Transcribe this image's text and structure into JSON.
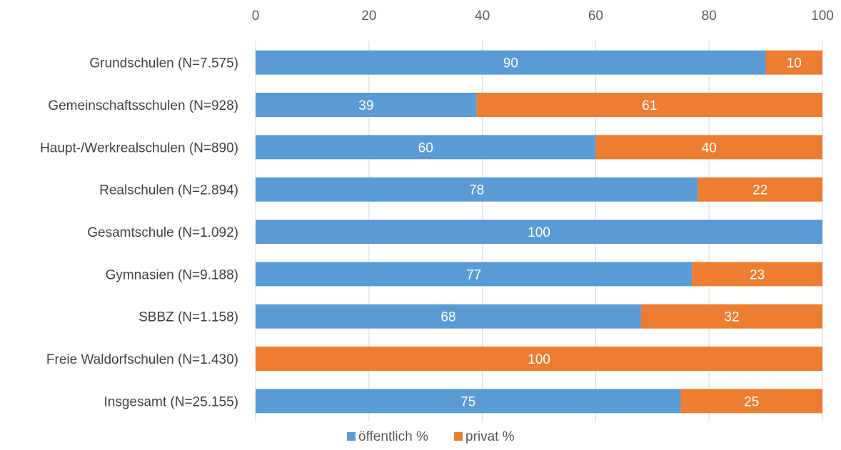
{
  "chart_data": {
    "type": "bar",
    "orientation": "horizontal",
    "stacked": true,
    "categories": [
      "Grundschulen (N=7.575)",
      "Gemeinschaftsschulen (N=928)",
      "Haupt-/Werkrealschulen (N=890)",
      "Realschulen (N=2.894)",
      "Gesamtschule (N=1.092)",
      "Gymnasien (N=9.188)",
      "SBBZ (N=1.158)",
      "Freie Waldorfschulen (N=1.430)",
      "Insgesamt (N=25.155)"
    ],
    "series": [
      {
        "name": "öffentlich %",
        "color": "#5B9BD5",
        "values": [
          90,
          39,
          60,
          78,
          100,
          77,
          68,
          0,
          75
        ]
      },
      {
        "name": "privat %",
        "color": "#ED7D31",
        "values": [
          10,
          61,
          40,
          22,
          0,
          23,
          32,
          100,
          25
        ]
      }
    ],
    "xlim": [
      0,
      100
    ],
    "xticks": [
      "0",
      "20",
      "40",
      "60",
      "80",
      "100"
    ],
    "xaxis_position": "top",
    "grid": true,
    "legend_position": "bottom",
    "title": "",
    "xlabel": "",
    "ylabel": ""
  }
}
